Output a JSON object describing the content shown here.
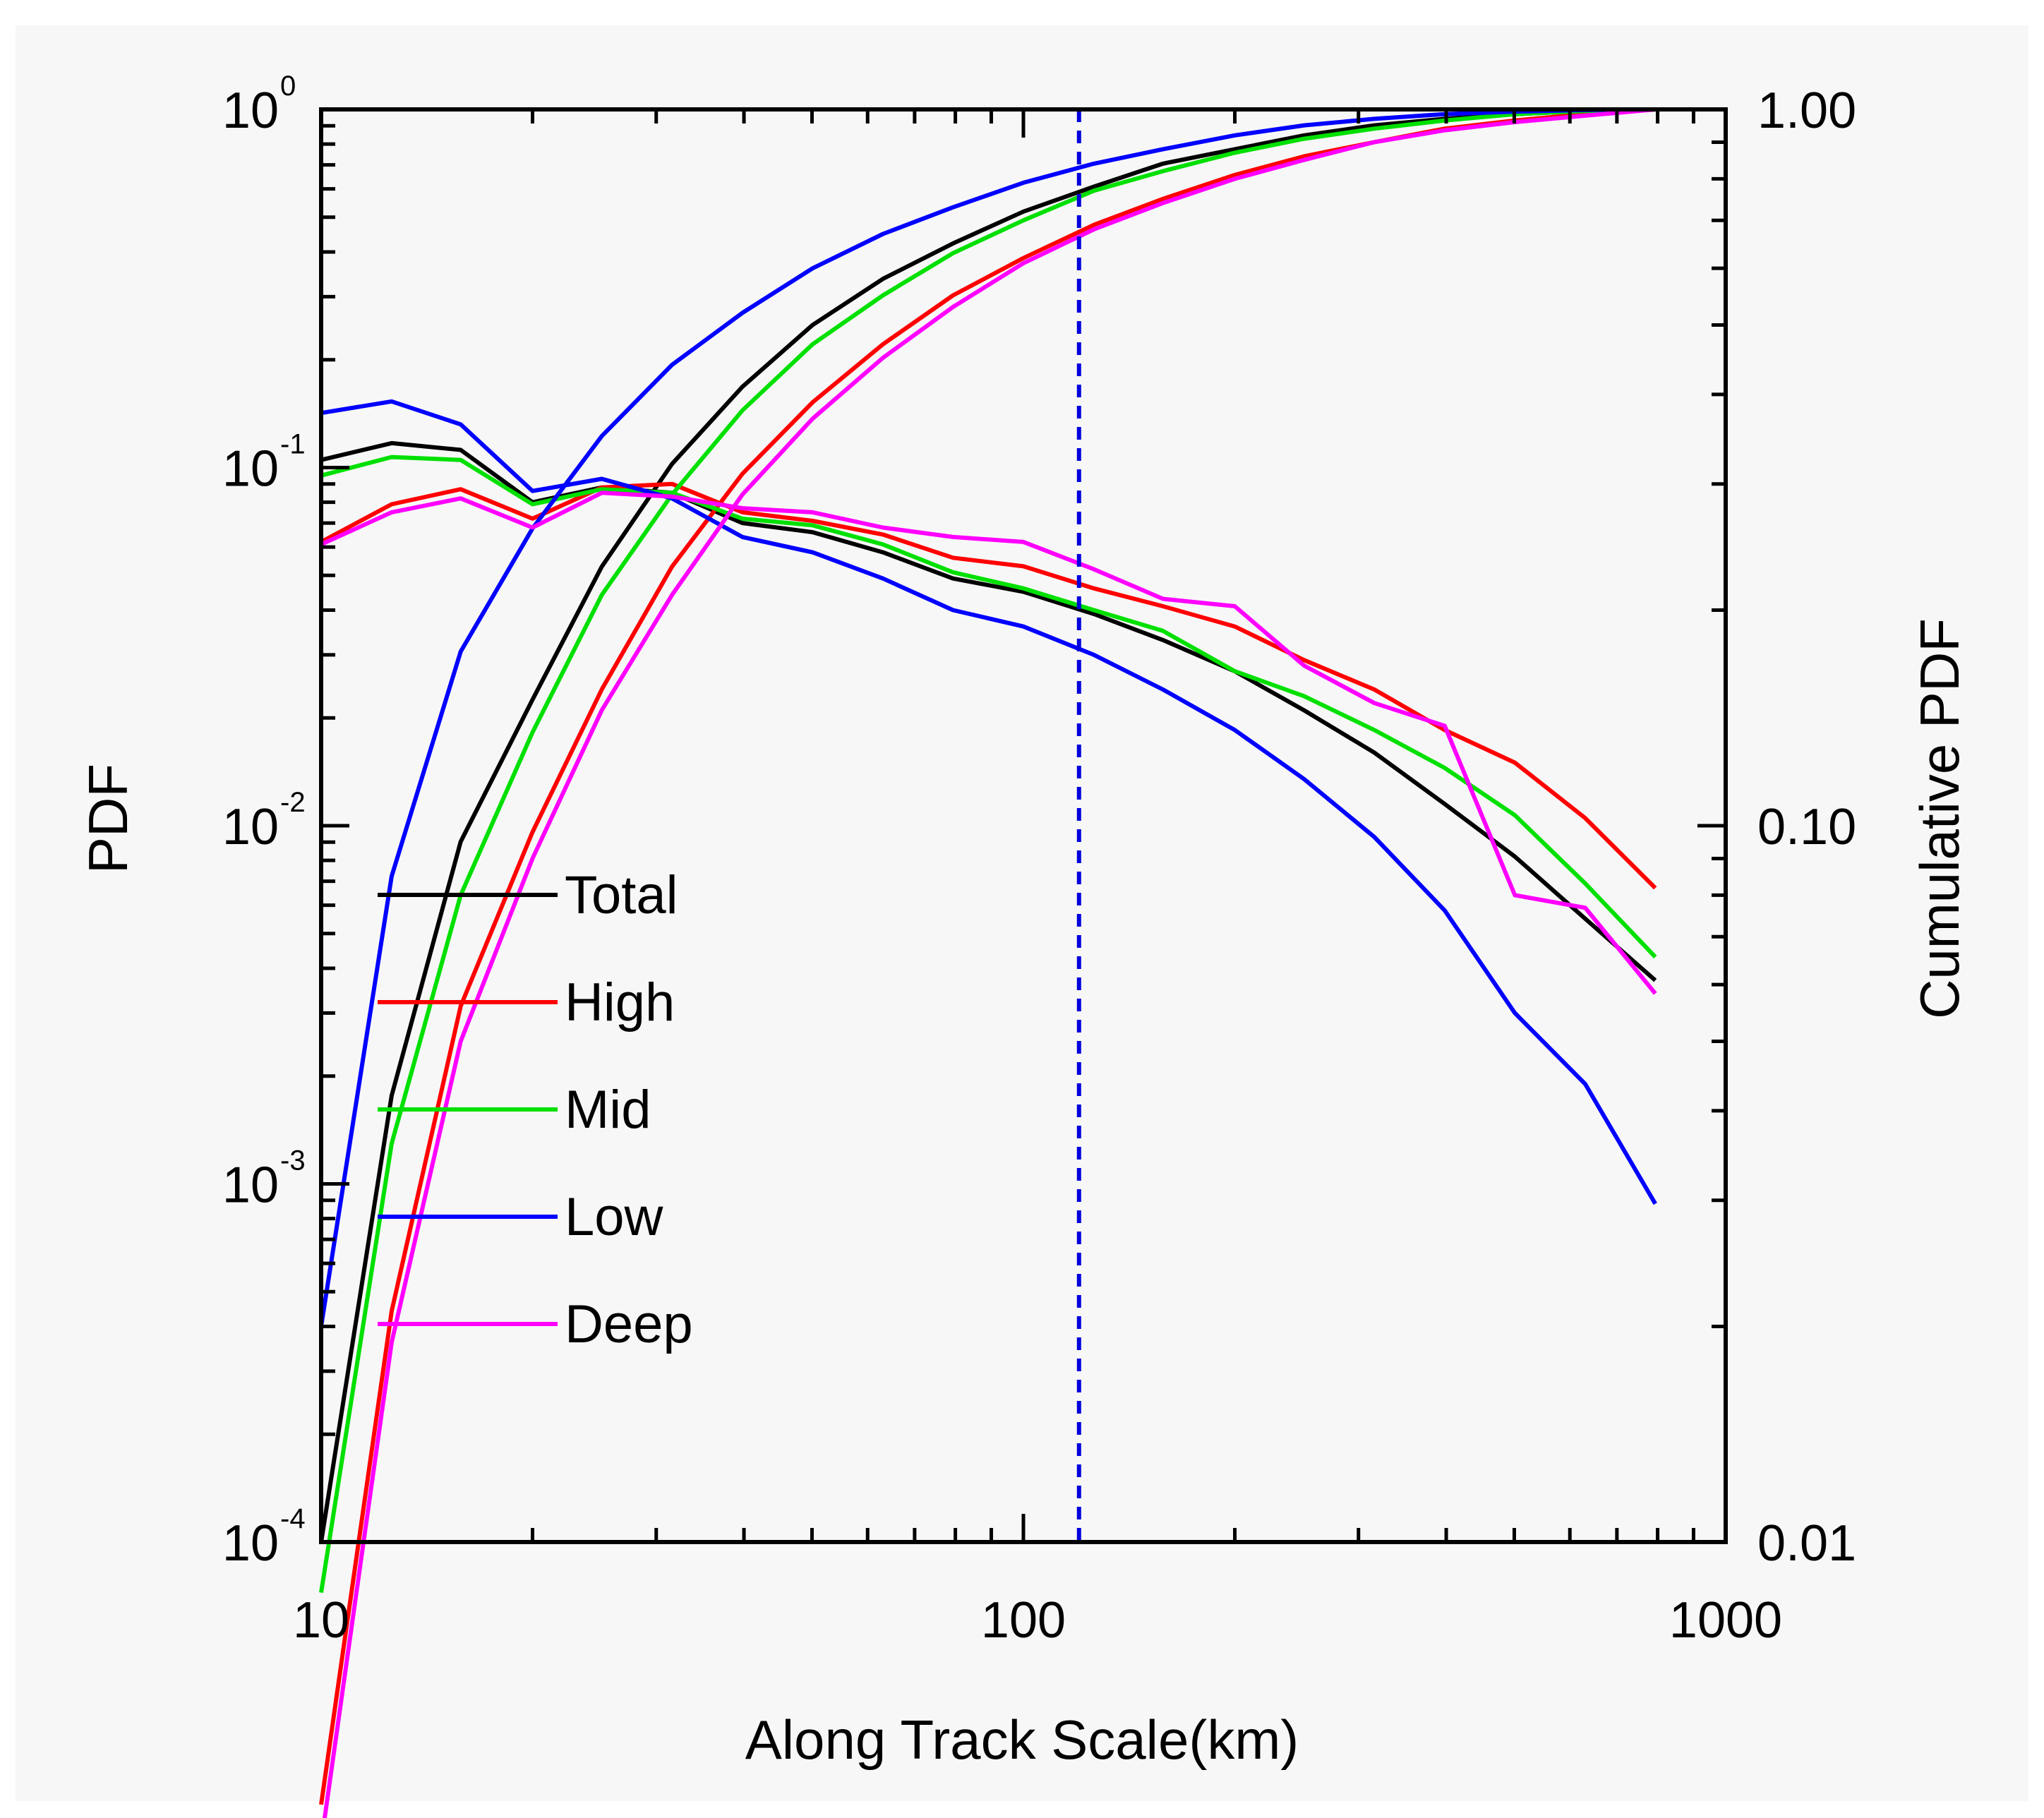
{
  "chart_data": {
    "type": "line",
    "xlabel": "Along Track Scale(km)",
    "ylabel": "PDF",
    "y2label": "Cumulative PDF",
    "xscale": "log",
    "xlim": [
      10,
      1000
    ],
    "ylim": [
      0.0001,
      1
    ],
    "y2lim": [
      0.01,
      1
    ],
    "x_ticks": [
      {
        "value": 10,
        "label": "10"
      },
      {
        "value": 100,
        "label": "100"
      },
      {
        "value": 1000,
        "label": "1000"
      }
    ],
    "y_ticks": [
      {
        "value": 1,
        "base": "10",
        "exp": "0"
      },
      {
        "value": 0.1,
        "base": "10",
        "exp": "-1"
      },
      {
        "value": 0.01,
        "base": "10",
        "exp": "-2"
      },
      {
        "value": 0.001,
        "base": "10",
        "exp": "-3"
      },
      {
        "value": 0.0001,
        "base": "10",
        "exp": "-4"
      }
    ],
    "y2_ticks": [
      {
        "value": 1,
        "label": "1.00"
      },
      {
        "value": 0.1,
        "label": "0.10"
      },
      {
        "value": 0.01,
        "label": "0.01"
      }
    ],
    "vline": {
      "x": 120,
      "color": "#0000dd",
      "style": "dashed"
    },
    "legend_position": "lower-left",
    "series": [
      {
        "name": "Total",
        "color": "#000000",
        "pdf": {
          "x": [
            10,
            12.6,
            15.8,
            20,
            25.1,
            31.6,
            39.8,
            50.1,
            63.1,
            79.4,
            100,
            126,
            158,
            200,
            251,
            316,
            398,
            501,
            631,
            794
          ],
          "y": [
            0.105,
            0.117,
            0.112,
            0.08,
            0.088,
            0.085,
            0.07,
            0.066,
            0.058,
            0.049,
            0.045,
            0.039,
            0.033,
            0.027,
            0.021,
            0.016,
            0.0115,
            0.0082,
            0.0055,
            0.0037
          ]
        },
        "cumulative": {
          "x": [
            10,
            12.6,
            15.8,
            20,
            25.1,
            31.6,
            39.8,
            50.1,
            63.1,
            79.4,
            100,
            126,
            158,
            200,
            251,
            316,
            398,
            501,
            631,
            794
          ],
          "y": [
            0.01,
            0.042,
            0.095,
            0.15,
            0.23,
            0.32,
            0.41,
            0.5,
            0.58,
            0.65,
            0.72,
            0.78,
            0.84,
            0.88,
            0.92,
            0.95,
            0.97,
            0.985,
            0.995,
            1.0
          ]
        }
      },
      {
        "name": "High",
        "color": "#ff0000",
        "pdf": {
          "x": [
            10,
            12.6,
            15.8,
            20,
            25.1,
            31.6,
            39.8,
            50.1,
            63.1,
            79.4,
            100,
            126,
            158,
            200,
            251,
            316,
            398,
            501,
            631,
            794
          ],
          "y": [
            0.062,
            0.079,
            0.087,
            0.072,
            0.088,
            0.09,
            0.075,
            0.071,
            0.065,
            0.056,
            0.053,
            0.046,
            0.041,
            0.036,
            0.029,
            0.024,
            0.0185,
            0.015,
            0.0105,
            0.0067
          ]
        },
        "cumulative": {
          "x": [
            10,
            12.6,
            15.8,
            20,
            25.1,
            31.6,
            39.8,
            50.1,
            63.1,
            79.4,
            100,
            126,
            158,
            200,
            251,
            316,
            398,
            501,
            631,
            794
          ],
          "y": [
            0.0043,
            0.021,
            0.056,
            0.098,
            0.155,
            0.23,
            0.31,
            0.39,
            0.47,
            0.55,
            0.62,
            0.69,
            0.75,
            0.81,
            0.86,
            0.9,
            0.94,
            0.965,
            0.985,
            1.0
          ]
        }
      },
      {
        "name": "Mid",
        "color": "#00e000",
        "pdf": {
          "x": [
            10,
            12.6,
            15.8,
            20,
            25.1,
            31.6,
            39.8,
            50.1,
            63.1,
            79.4,
            100,
            126,
            158,
            200,
            251,
            316,
            398,
            501,
            631,
            794
          ],
          "y": [
            0.095,
            0.107,
            0.105,
            0.079,
            0.087,
            0.085,
            0.072,
            0.069,
            0.061,
            0.051,
            0.046,
            0.04,
            0.035,
            0.027,
            0.023,
            0.0185,
            0.0145,
            0.0107,
            0.0069,
            0.0043
          ]
        },
        "cumulative": {
          "x": [
            10,
            12.6,
            15.8,
            20,
            25.1,
            31.6,
            39.8,
            50.1,
            63.1,
            79.4,
            100,
            126,
            158,
            200,
            251,
            316,
            398,
            501,
            631,
            794
          ],
          "y": [
            0.0085,
            0.036,
            0.08,
            0.135,
            0.21,
            0.29,
            0.38,
            0.47,
            0.55,
            0.63,
            0.7,
            0.77,
            0.82,
            0.87,
            0.91,
            0.94,
            0.965,
            0.985,
            0.995,
            1.0
          ]
        }
      },
      {
        "name": "Low",
        "color": "#0000ff",
        "pdf": {
          "x": [
            10,
            12.6,
            15.8,
            20,
            25.1,
            31.6,
            39.8,
            50.1,
            63.1,
            79.4,
            100,
            126,
            158,
            200,
            251,
            316,
            398,
            501,
            631,
            794
          ],
          "y": [
            0.142,
            0.153,
            0.132,
            0.086,
            0.093,
            0.082,
            0.064,
            0.058,
            0.049,
            0.04,
            0.036,
            0.03,
            0.024,
            0.0185,
            0.0135,
            0.0093,
            0.0058,
            0.003,
            0.0019,
            0.00088
          ]
        },
        "cumulative": {
          "x": [
            10,
            12.6,
            15.8,
            20,
            25.1,
            31.6,
            39.8,
            50.1,
            63.1,
            79.4,
            100,
            126,
            158,
            200,
            251,
            316,
            398,
            501,
            631,
            794
          ],
          "y": [
            0.02,
            0.085,
            0.175,
            0.26,
            0.35,
            0.44,
            0.52,
            0.6,
            0.67,
            0.73,
            0.79,
            0.84,
            0.88,
            0.92,
            0.95,
            0.97,
            0.985,
            0.993,
            0.998,
            1.0
          ]
        }
      },
      {
        "name": "Deep",
        "color": "#ff00ff",
        "pdf": {
          "x": [
            10,
            12.6,
            15.8,
            20,
            25.1,
            31.6,
            39.8,
            50.1,
            63.1,
            79.4,
            100,
            126,
            158,
            200,
            251,
            316,
            398,
            501,
            631,
            794
          ],
          "y": [
            0.061,
            0.075,
            0.082,
            0.068,
            0.085,
            0.083,
            0.077,
            0.075,
            0.068,
            0.064,
            0.062,
            0.052,
            0.043,
            0.041,
            0.028,
            0.022,
            0.019,
            0.0064,
            0.0059,
            0.0034
          ]
        },
        "cumulative": {
          "x": [
            10,
            12.6,
            15.8,
            20,
            25.1,
            31.6,
            39.8,
            50.1,
            63.1,
            79.4,
            100,
            126,
            158,
            200,
            251,
            316,
            398,
            501,
            631,
            794
          ],
          "y": [
            0.0038,
            0.019,
            0.05,
            0.09,
            0.145,
            0.21,
            0.29,
            0.37,
            0.45,
            0.53,
            0.61,
            0.68,
            0.74,
            0.8,
            0.85,
            0.9,
            0.935,
            0.96,
            0.98,
            1.0
          ]
        }
      }
    ]
  }
}
